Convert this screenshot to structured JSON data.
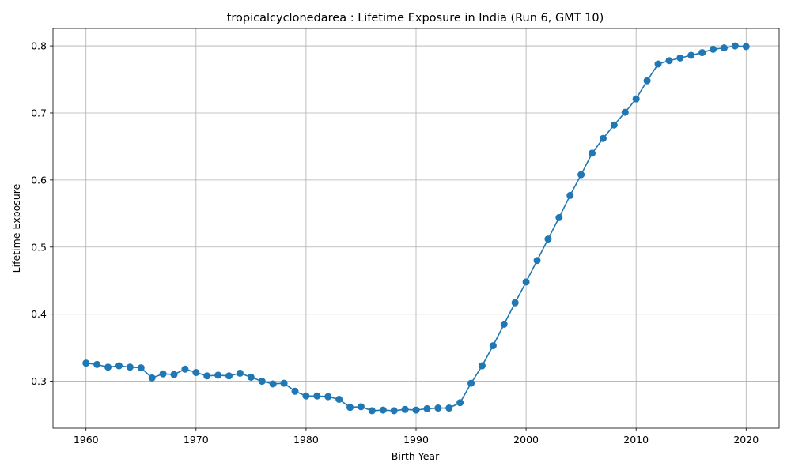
{
  "chart_data": {
    "type": "line",
    "title": "tropicalcyclonedarea : Lifetime Exposure in India (Run 6, GMT 10)",
    "xlabel": "Birth Year",
    "ylabel": "Lifetime Exposure",
    "xlim": [
      1957,
      2023
    ],
    "ylim": [
      0.23,
      0.826
    ],
    "xticks": [
      1960,
      1970,
      1980,
      1990,
      2000,
      2010,
      2020
    ],
    "yticks": [
      0.3,
      0.4,
      0.5,
      0.6,
      0.7,
      0.8
    ],
    "xtick_labels": [
      "1960",
      "1970",
      "1980",
      "1990",
      "2000",
      "2010",
      "2020"
    ],
    "ytick_labels": [
      "0.3",
      "0.4",
      "0.5",
      "0.6",
      "0.7",
      "0.8"
    ],
    "grid": true,
    "marker": "circle",
    "color": "#1f77b4",
    "x": [
      1960,
      1961,
      1962,
      1963,
      1964,
      1965,
      1966,
      1967,
      1968,
      1969,
      1970,
      1971,
      1972,
      1973,
      1974,
      1975,
      1976,
      1977,
      1978,
      1979,
      1980,
      1981,
      1982,
      1983,
      1984,
      1985,
      1986,
      1987,
      1988,
      1989,
      1990,
      1991,
      1992,
      1993,
      1994,
      1995,
      1996,
      1997,
      1998,
      1999,
      2000,
      2001,
      2002,
      2003,
      2004,
      2005,
      2006,
      2007,
      2008,
      2009,
      2010,
      2011,
      2012,
      2013,
      2014,
      2015,
      2016,
      2017,
      2018,
      2019,
      2020
    ],
    "y": [
      0.327,
      0.325,
      0.321,
      0.323,
      0.321,
      0.32,
      0.305,
      0.311,
      0.31,
      0.318,
      0.313,
      0.308,
      0.309,
      0.308,
      0.312,
      0.306,
      0.3,
      0.296,
      0.297,
      0.285,
      0.278,
      0.278,
      0.277,
      0.273,
      0.261,
      0.262,
      0.256,
      0.257,
      0.256,
      0.258,
      0.257,
      0.259,
      0.26,
      0.26,
      0.268,
      0.297,
      0.323,
      0.353,
      0.385,
      0.417,
      0.448,
      0.48,
      0.512,
      0.544,
      0.577,
      0.608,
      0.64,
      0.662,
      0.682,
      0.701,
      0.721,
      0.748,
      0.773,
      0.778,
      0.782,
      0.786,
      0.79,
      0.795,
      0.797,
      0.8,
      0.799
    ]
  }
}
